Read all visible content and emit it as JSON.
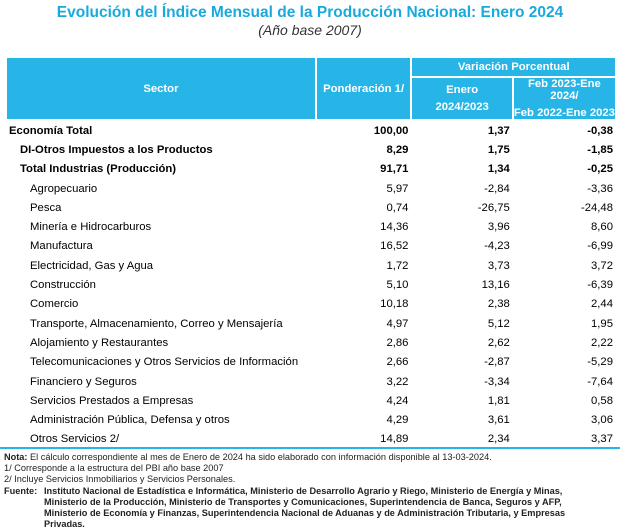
{
  "title": "Evolución del Índice Mensual de la Producción Nacional: Enero 2024",
  "subtitle": "(Año base 2007)",
  "header": {
    "sector": "Sector",
    "ponderacion": "Ponderación 1/",
    "variacion": "Variación Porcentual",
    "enero_1": "Enero",
    "enero_2": "2024/2023",
    "feb_1": "Feb 2023-Ene 2024/",
    "feb_2": "Feb 2022-Ene 2023"
  },
  "rows": [
    {
      "sector": "Economía Total",
      "ponderacion": "100,00",
      "enero": "1,37",
      "anual": "-0,38"
    },
    {
      "sector": "DI-Otros Impuestos a los Productos",
      "ponderacion": "8,29",
      "enero": "1,75",
      "anual": "-1,85"
    },
    {
      "sector": "Total  Industrias (Producción)",
      "ponderacion": "91,71",
      "enero": "1,34",
      "anual": "-0,25"
    },
    {
      "sector": "Agropecuario",
      "ponderacion": "5,97",
      "enero": "-2,84",
      "anual": "-3,36"
    },
    {
      "sector": "Pesca",
      "ponderacion": "0,74",
      "enero": "-26,75",
      "anual": "-24,48"
    },
    {
      "sector": "Minería e Hidrocarburos",
      "ponderacion": "14,36",
      "enero": "3,96",
      "anual": "8,60"
    },
    {
      "sector": "Manufactura",
      "ponderacion": "16,52",
      "enero": "-4,23",
      "anual": "-6,99"
    },
    {
      "sector": "Electricidad, Gas y Agua",
      "ponderacion": "1,72",
      "enero": "3,73",
      "anual": "3,72"
    },
    {
      "sector": "Construcción",
      "ponderacion": "5,10",
      "enero": "13,16",
      "anual": "-6,39"
    },
    {
      "sector": "Comercio",
      "ponderacion": "10,18",
      "enero": "2,38",
      "anual": "2,44"
    },
    {
      "sector": "Transporte, Almacenamiento, Correo y Mensajería",
      "ponderacion": "4,97",
      "enero": "5,12",
      "anual": "1,95"
    },
    {
      "sector": "Alojamiento y Restaurantes",
      "ponderacion": "2,86",
      "enero": "2,62",
      "anual": "2,22"
    },
    {
      "sector": "Telecomunicaciones y Otros Servicios de Información",
      "ponderacion": "2,66",
      "enero": "-2,87",
      "anual": "-5,29"
    },
    {
      "sector": "Financiero y Seguros",
      "ponderacion": "3,22",
      "enero": "-3,34",
      "anual": "-7,64"
    },
    {
      "sector": "Servicios Prestados a Empresas",
      "ponderacion": "4,24",
      "enero": "1,81",
      "anual": "0,58"
    },
    {
      "sector": "Administración Pública, Defensa y otros",
      "ponderacion": "4,29",
      "enero": "3,61",
      "anual": "3,06"
    },
    {
      "sector": "Otros Servicios 2/",
      "ponderacion": "14,89",
      "enero": "2,34",
      "anual": "3,37"
    }
  ],
  "notes": {
    "nota_label": "Nota:",
    "nota": "El cálculo correspondiente al mes de Enero de 2024 ha sido elaborado con información disponible al 13-03-2024.",
    "n1": "1/ Corresponde a la estructura del PBI año base 2007",
    "n2": "2/ Incluye Servicios Inmobiliarios y Servicios Personales.",
    "fuente_label": "Fuente:",
    "fuente": "Instituto Nacional de Estadística e Informática, Ministerio de Desarrollo Agrario y Riego, Ministerio de Energía y Minas, Ministerio de la Producción, Ministerio de Transportes y Comunicaciones, Superintendencia de Banca, Seguros y AFP, Ministerio de Economía y Finanzas, Superintendencia Nacional de Aduanas y de Administración Tributaria, y Empresas Privadas."
  },
  "colors": {
    "header_bg": "#27b4e6",
    "title": "#1aa9dc"
  }
}
